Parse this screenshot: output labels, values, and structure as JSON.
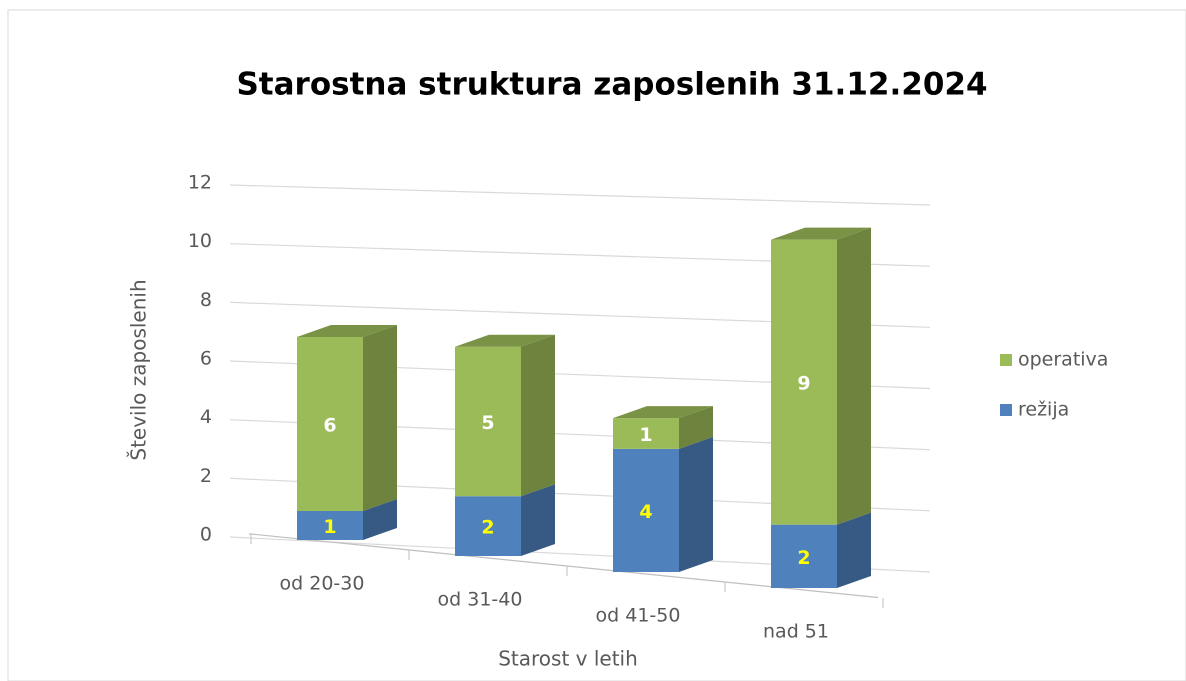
{
  "chart_data": {
    "type": "bar3d_stacked",
    "title": "Starostna struktura zaposlenih 31.12.2024",
    "ylabel": "Število zaposlenih",
    "xlabel": "Starost v letih",
    "categories": [
      "od 20-30",
      "od 31-40",
      "od 41-50",
      "nad 51"
    ],
    "series": [
      {
        "name": "režija",
        "color": "#4f81bd",
        "label_color": "#ffff00",
        "values": [
          1,
          2,
          4,
          2
        ]
      },
      {
        "name": "operativa",
        "color": "#9bbb59",
        "label_color": "#ffffff",
        "values": [
          6,
          5,
          1,
          9
        ]
      }
    ],
    "ylim": [
      0,
      12
    ],
    "yticks": [
      0,
      2,
      4,
      6,
      8,
      10,
      12
    ],
    "grid": true,
    "legend": "right"
  }
}
